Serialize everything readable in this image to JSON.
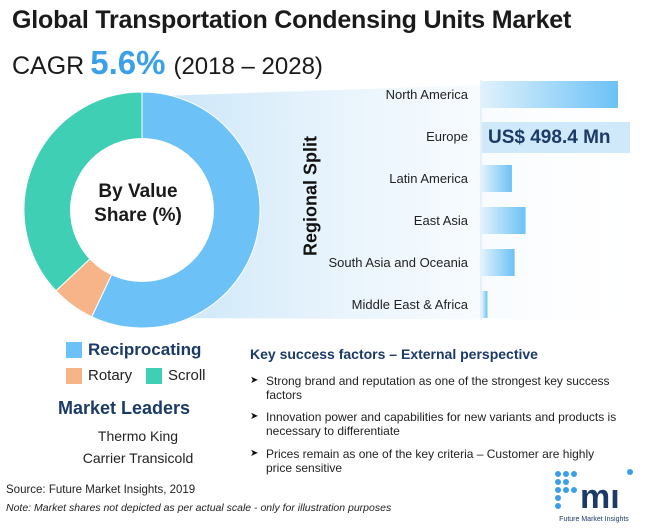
{
  "header": {
    "title": "Global Transportation Condensing Units Market",
    "cagr_label": "CAGR",
    "cagr_value": "5.6%",
    "period": "(2018 – 2028)"
  },
  "colors": {
    "reciprocating": "#6cc1f6",
    "rotary": "#f6b488",
    "scroll": "#3fcfb4",
    "brand_blue": "#1b3a68",
    "accent_blue": "#3aa0e8",
    "callout_bg": "#cfe9fb"
  },
  "chart_data": [
    {
      "type": "pie",
      "title": "",
      "center_label": "By Value Share (%)",
      "labels": [
        "Reciprocating",
        "Rotary",
        "Scroll"
      ],
      "values": [
        57,
        6,
        37
      ],
      "unit": "%"
    },
    {
      "type": "bar",
      "orientation": "horizontal",
      "axis_title": "Regional Split",
      "categories": [
        "North America",
        "Europe",
        "Latin America",
        "East Asia",
        "South Asia and Oceania",
        "Middle East & Africa"
      ],
      "values": [
        100,
        108,
        22,
        32,
        24,
        4
      ],
      "highlight": {
        "category": "Europe",
        "label": "US$ 498.4 Mn"
      }
    }
  ],
  "legend": {
    "reciprocating": "Reciprocating",
    "rotary": "Rotary",
    "scroll": "Scroll"
  },
  "market_leaders": {
    "title": "Market Leaders",
    "items": [
      "Thermo King",
      "Carrier Transicold"
    ]
  },
  "key_success_factors": {
    "title": "Key success factors – External perspective",
    "items": [
      "Strong brand and reputation as one of the strongest key success factors",
      "Innovation power and capabilities for new variants and products is necessary to differentiate",
      "Prices remain as one of the key criteria – Customer are highly price sensitive"
    ]
  },
  "footer": {
    "source": "Source: Future Market Insights, 2019",
    "note": "Note:  Market shares not depicted as per actual scale - only for illustration purposes"
  },
  "logo": {
    "text": "fmi",
    "subtitle": "Future Market Insights"
  }
}
